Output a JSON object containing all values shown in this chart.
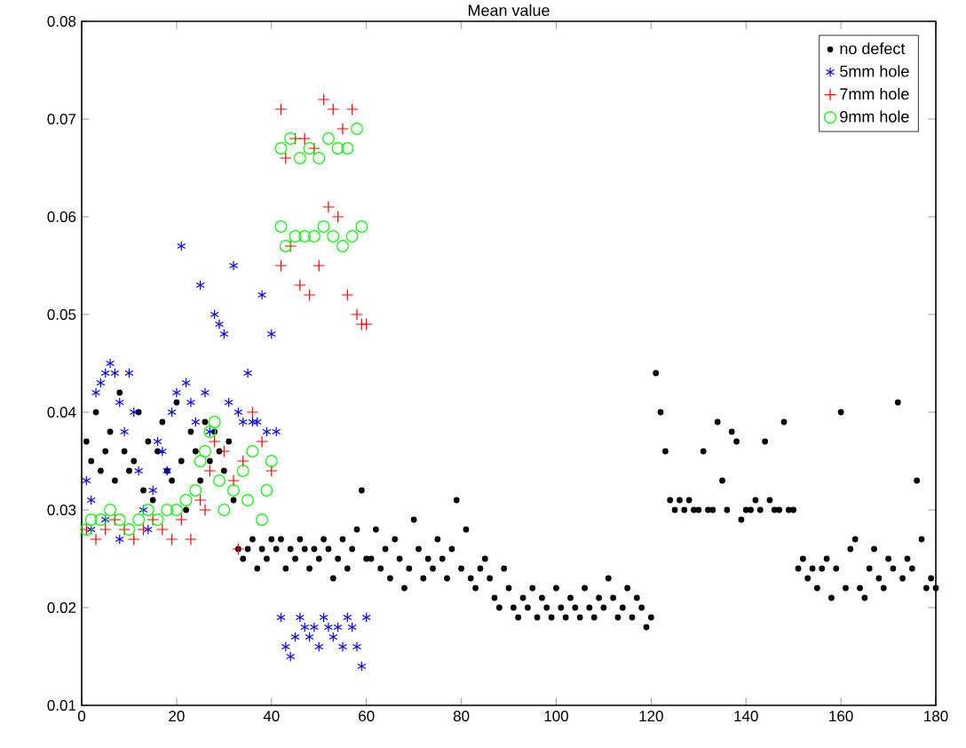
{
  "chart_data": {
    "type": "scatter",
    "title": "Mean value",
    "xlim": [
      0,
      180
    ],
    "xticks": [
      0,
      20,
      40,
      60,
      80,
      100,
      120,
      140,
      160,
      180
    ],
    "ylim": [
      0.01,
      0.08
    ],
    "yticks": [
      0.01,
      0.02,
      0.03,
      0.04,
      0.05,
      0.06,
      0.07,
      0.08
    ],
    "legend": "top right",
    "series": [
      {
        "name": "no defect",
        "color": "#000000",
        "marker": "circle",
        "x": [
          1,
          2,
          3,
          4,
          5,
          6,
          7,
          8,
          9,
          10,
          11,
          12,
          13,
          14,
          15,
          16,
          17,
          18,
          19,
          20,
          21,
          22,
          23,
          24,
          25,
          26,
          27,
          28,
          29,
          30,
          31,
          32,
          33,
          34,
          35,
          36,
          37,
          38,
          39,
          40,
          41,
          42,
          43,
          44,
          45,
          46,
          47,
          48,
          49,
          50,
          51,
          52,
          53,
          54,
          55,
          56,
          57,
          58,
          59,
          60,
          61,
          62,
          63,
          64,
          65,
          66,
          67,
          68,
          69,
          70,
          71,
          72,
          73,
          74,
          75,
          76,
          77,
          78,
          79,
          80,
          81,
          82,
          83,
          84,
          85,
          86,
          87,
          88,
          89,
          90,
          91,
          92,
          93,
          94,
          95,
          96,
          97,
          98,
          99,
          100,
          101,
          102,
          103,
          104,
          105,
          106,
          107,
          108,
          109,
          110,
          111,
          112,
          113,
          114,
          115,
          116,
          117,
          118,
          119,
          120,
          121,
          122,
          123,
          124,
          125,
          126,
          127,
          128,
          129,
          130,
          131,
          132,
          133,
          134,
          135,
          136,
          137,
          138,
          139,
          140,
          141,
          142,
          143,
          144,
          145,
          146,
          147,
          148,
          149,
          150,
          151,
          152,
          153,
          154,
          155,
          156,
          157,
          158,
          159,
          160,
          161,
          162,
          163,
          164,
          165,
          166,
          167,
          168,
          169,
          170,
          171,
          172,
          173,
          174,
          175,
          176,
          177,
          178,
          179,
          180
        ],
        "values": [
          0.037,
          0.035,
          0.04,
          0.034,
          0.036,
          0.038,
          0.033,
          0.042,
          0.036,
          0.034,
          0.035,
          0.04,
          0.032,
          0.037,
          0.031,
          0.036,
          0.039,
          0.034,
          0.033,
          0.041,
          0.035,
          0.03,
          0.038,
          0.036,
          0.033,
          0.039,
          0.035,
          0.038,
          0.036,
          0.034,
          0.037,
          0.031,
          0.026,
          0.025,
          0.026,
          0.027,
          0.024,
          0.026,
          0.025,
          0.027,
          0.026,
          0.027,
          0.024,
          0.026,
          0.025,
          0.027,
          0.026,
          0.024,
          0.026,
          0.025,
          0.027,
          0.026,
          0.023,
          0.025,
          0.027,
          0.024,
          0.026,
          0.028,
          0.032,
          0.025,
          0.025,
          0.028,
          0.024,
          0.026,
          0.023,
          0.027,
          0.025,
          0.022,
          0.024,
          0.029,
          0.026,
          0.023,
          0.025,
          0.024,
          0.027,
          0.025,
          0.023,
          0.026,
          0.031,
          0.024,
          0.028,
          0.023,
          0.022,
          0.024,
          0.025,
          0.023,
          0.021,
          0.02,
          0.024,
          0.022,
          0.02,
          0.019,
          0.021,
          0.02,
          0.022,
          0.019,
          0.021,
          0.02,
          0.019,
          0.022,
          0.02,
          0.019,
          0.021,
          0.02,
          0.019,
          0.022,
          0.02,
          0.019,
          0.021,
          0.02,
          0.023,
          0.021,
          0.019,
          0.02,
          0.022,
          0.019,
          0.021,
          0.02,
          0.018,
          0.019,
          0.044,
          0.04,
          0.036,
          0.031,
          0.03,
          0.031,
          0.03,
          0.031,
          0.03,
          0.03,
          0.036,
          0.03,
          0.03,
          0.039,
          0.033,
          0.03,
          0.038,
          0.037,
          0.029,
          0.03,
          0.03,
          0.031,
          0.03,
          0.037,
          0.031,
          0.03,
          0.03,
          0.039,
          0.03,
          0.03,
          0.024,
          0.025,
          0.023,
          0.024,
          0.022,
          0.024,
          0.025,
          0.021,
          0.024,
          0.04,
          0.022,
          0.026,
          0.027,
          0.022,
          0.021,
          0.024,
          0.026,
          0.023,
          0.022,
          0.025,
          0.024,
          0.041,
          0.023,
          0.025,
          0.024,
          0.033,
          0.027,
          0.022,
          0.023,
          0.022
        ]
      },
      {
        "name": "5mm hole",
        "color": "#0000ff",
        "marker": "cross",
        "x": [
          1,
          2,
          2,
          3,
          4,
          5,
          6,
          7,
          8,
          9,
          10,
          11,
          12,
          13,
          14,
          15,
          16,
          17,
          18,
          19,
          20,
          21,
          22,
          23,
          24,
          25,
          26,
          27,
          28,
          29,
          30,
          31,
          32,
          33,
          34,
          35,
          36,
          37,
          38,
          39,
          40,
          41,
          42,
          43,
          44,
          45,
          46,
          47,
          48,
          49,
          50,
          51,
          52,
          53,
          54,
          55,
          56,
          57,
          58,
          59,
          60,
          5,
          8
        ],
        "values": [
          0.033,
          0.031,
          0.028,
          0.042,
          0.043,
          0.044,
          0.045,
          0.044,
          0.041,
          0.038,
          0.044,
          0.04,
          0.034,
          0.03,
          0.028,
          0.032,
          0.037,
          0.036,
          0.034,
          0.04,
          0.042,
          0.057,
          0.043,
          0.041,
          0.039,
          0.053,
          0.042,
          0.038,
          0.05,
          0.049,
          0.048,
          0.041,
          0.055,
          0.04,
          0.039,
          0.044,
          0.039,
          0.039,
          0.052,
          0.038,
          0.048,
          0.038,
          0.019,
          0.016,
          0.015,
          0.017,
          0.019,
          0.018,
          0.017,
          0.018,
          0.016,
          0.019,
          0.018,
          0.017,
          0.018,
          0.016,
          0.019,
          0.018,
          0.016,
          0.014,
          0.019,
          0.029,
          0.027
        ]
      },
      {
        "name": "7mm hole",
        "color": "#ff0000",
        "marker": "cross",
        "x": [
          1,
          3,
          5,
          7,
          9,
          11,
          13,
          15,
          17,
          19,
          21,
          23,
          25,
          26,
          27,
          28,
          30,
          32,
          34,
          36,
          38,
          40,
          33,
          42,
          43,
          45,
          47,
          49,
          51,
          53,
          55,
          57,
          42,
          44,
          46,
          48,
          50,
          52,
          54,
          56,
          58,
          59,
          60
        ],
        "values": [
          0.028,
          0.027,
          0.028,
          0.029,
          0.028,
          0.027,
          0.028,
          0.029,
          0.028,
          0.027,
          0.029,
          0.027,
          0.031,
          0.03,
          0.034,
          0.037,
          0.036,
          0.033,
          0.035,
          0.04,
          0.037,
          0.034,
          0.026,
          0.071,
          0.066,
          0.068,
          0.068,
          0.067,
          0.072,
          0.071,
          0.069,
          0.071,
          0.055,
          0.057,
          0.053,
          0.052,
          0.055,
          0.061,
          0.06,
          0.052,
          0.05,
          0.049,
          0.049
        ]
      },
      {
        "name": "9mm hole",
        "color": "#00ff00",
        "marker": "circle",
        "x": [
          1,
          2,
          4,
          6,
          8,
          10,
          12,
          14,
          16,
          18,
          20,
          22,
          24,
          25,
          26,
          27,
          28,
          29,
          30,
          32,
          34,
          35,
          36,
          38,
          39,
          40,
          42,
          43,
          45,
          47,
          49,
          51,
          53,
          55,
          57,
          59,
          42,
          44,
          46,
          48,
          50,
          52,
          54,
          56,
          58
        ],
        "values": [
          0.028,
          0.029,
          0.029,
          0.03,
          0.029,
          0.028,
          0.029,
          0.03,
          0.029,
          0.03,
          0.03,
          0.031,
          0.032,
          0.035,
          0.036,
          0.038,
          0.039,
          0.033,
          0.03,
          0.032,
          0.034,
          0.031,
          0.036,
          0.029,
          0.032,
          0.035,
          0.059,
          0.057,
          0.058,
          0.058,
          0.058,
          0.059,
          0.058,
          0.057,
          0.058,
          0.059,
          0.067,
          0.068,
          0.066,
          0.067,
          0.066,
          0.068,
          0.067,
          0.067,
          0.069
        ]
      }
    ]
  }
}
